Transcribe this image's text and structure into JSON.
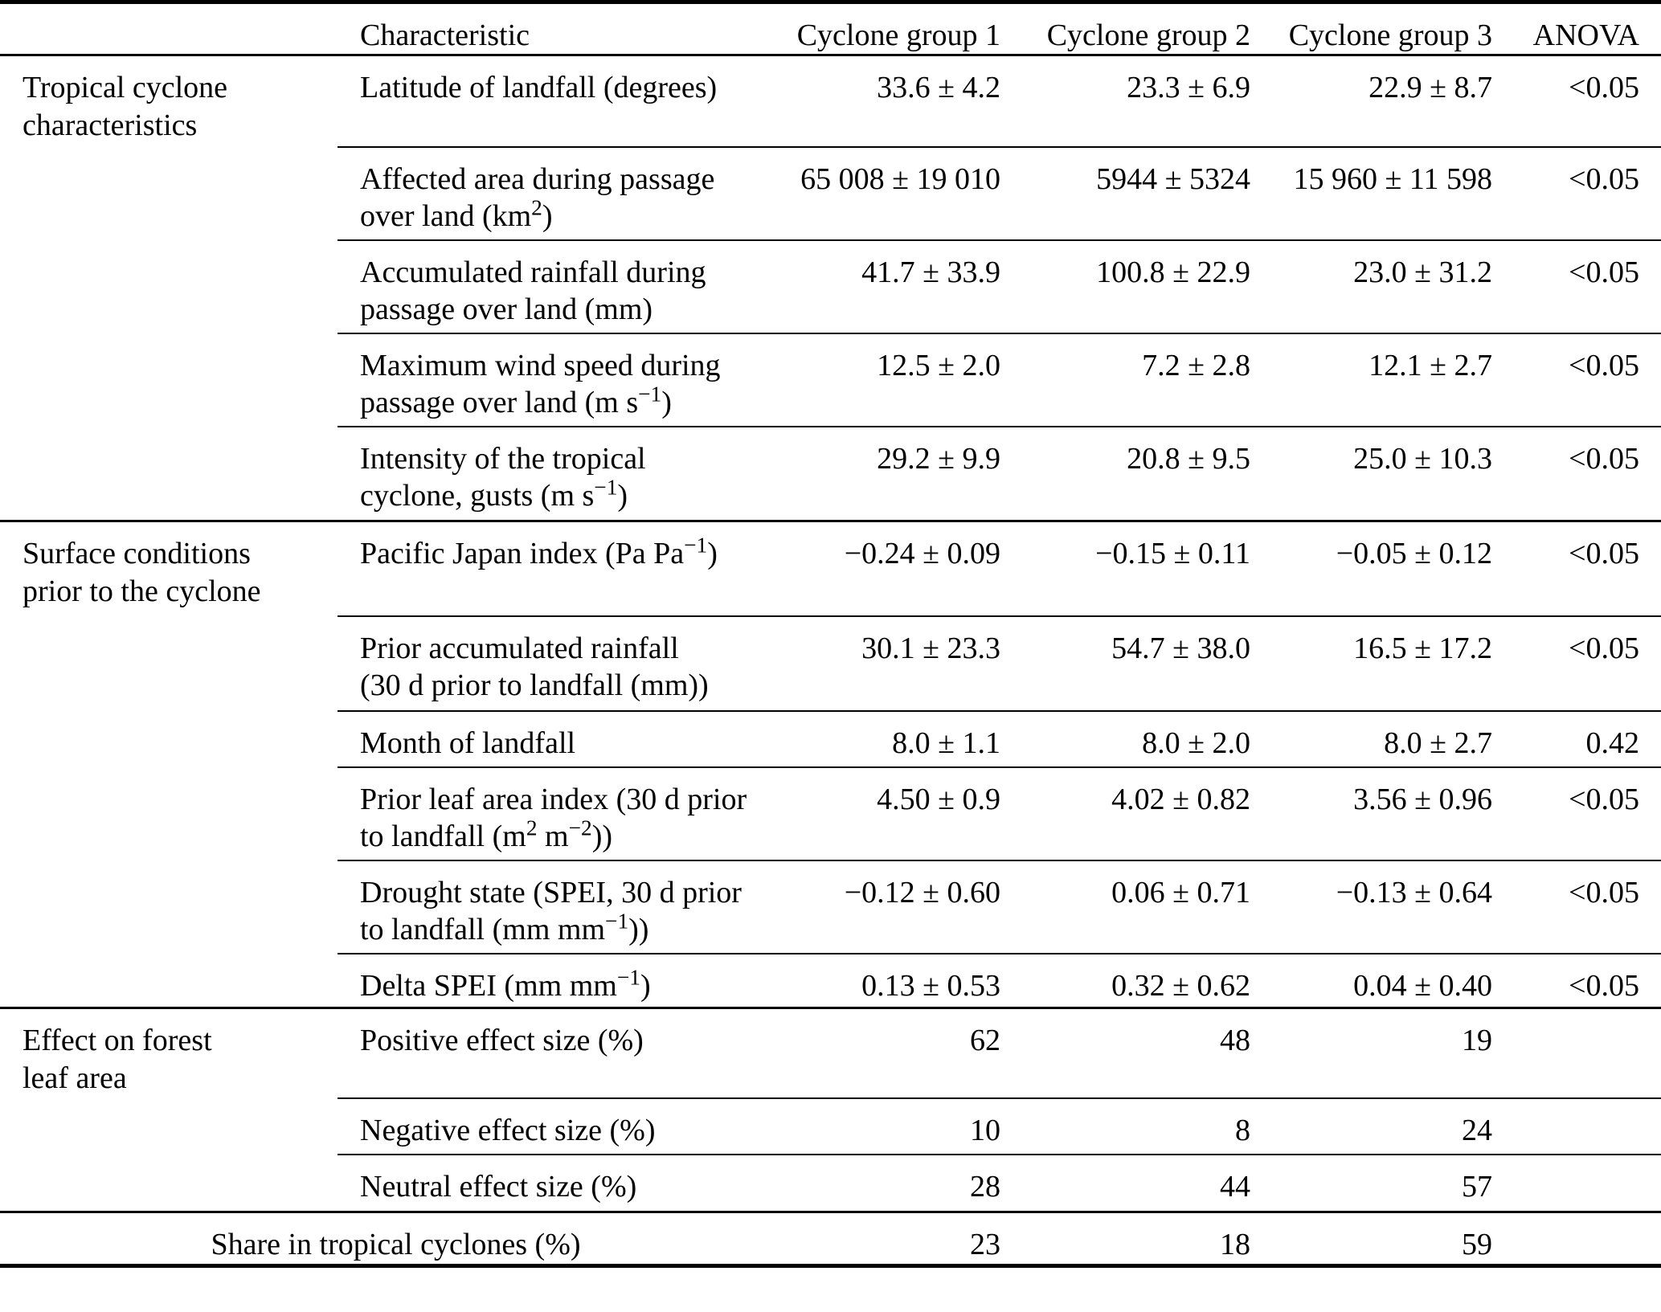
{
  "table": {
    "headers": {
      "characteristic": "Characteristic",
      "group1": "Cyclone group 1",
      "group2": "Cyclone group 2",
      "group3": "Cyclone group 3",
      "anova": "ANOVA"
    },
    "sections": [
      {
        "label_html": "Tropical cyclone<br>characteristics",
        "rows": [
          {
            "characteristic_html": "Latitude of landfall (degrees)",
            "group1": "33.6 ± 4.2",
            "group2": "23.3 ± 6.9",
            "group3": "22.9 ± 8.7",
            "anova": "<0.05"
          },
          {
            "characteristic_html": "Affected area during passage<br>over land (km<sup>2</sup>)",
            "group1": "65 008 ± 19 010",
            "group2": "5944 ± 5324",
            "group3": "15 960 ± 11 598",
            "anova": "<0.05"
          },
          {
            "characteristic_html": "Accumulated rainfall during<br>passage over land (mm)",
            "group1": "41.7 ± 33.9",
            "group2": "100.8 ± 22.9",
            "group3": "23.0 ± 31.2",
            "anova": "<0.05"
          },
          {
            "characteristic_html": "Maximum wind speed during<br>passage over land (m s<sup>−1</sup>)",
            "group1": "12.5 ± 2.0",
            "group2": "7.2 ± 2.8",
            "group3": "12.1 ± 2.7",
            "anova": "<0.05"
          },
          {
            "characteristic_html": "Intensity of the tropical<br>cyclone, gusts (m s<sup>−1</sup>)",
            "group1": "29.2 ± 9.9",
            "group2": "20.8 ± 9.5",
            "group3": "25.0 ± 10.3",
            "anova": "<0.05"
          }
        ]
      },
      {
        "label_html": "Surface conditions<br>prior to the cyclone",
        "rows": [
          {
            "characteristic_html": "Pacific Japan index (Pa Pa<sup>−1</sup>)",
            "group1": "−0.24 ± 0.09",
            "group2": "−0.15 ± 0.11",
            "group3": "−0.05 ± 0.12",
            "anova": "<0.05"
          },
          {
            "characteristic_html": "Prior accumulated rainfall<br>(30 d prior to landfall (mm))",
            "group1": "30.1 ± 23.3",
            "group2": "54.7 ± 38.0",
            "group3": "16.5 ± 17.2",
            "anova": "<0.05"
          },
          {
            "characteristic_html": "Month of landfall",
            "group1": "8.0 ± 1.1",
            "group2": "8.0 ± 2.0",
            "group3": "8.0 ± 2.7",
            "anova": "0.42"
          },
          {
            "characteristic_html": "Prior leaf area index (30 d prior<br>to landfall (m<sup>2</sup> m<sup>−2</sup>))",
            "group1": "4.50 ± 0.9",
            "group2": "4.02 ± 0.82",
            "group3": "3.56 ± 0.96",
            "anova": "<0.05"
          },
          {
            "characteristic_html": "Drought state (SPEI, 30 d prior<br>to landfall (mm mm<sup>−1</sup>))",
            "group1": "−0.12 ± 0.60",
            "group2": "0.06 ± 0.71",
            "group3": "−0.13 ± 0.64",
            "anova": "<0.05"
          },
          {
            "characteristic_html": "Delta SPEI (mm mm<sup>−1</sup>)",
            "group1": "0.13 ± 0.53",
            "group2": "0.32 ± 0.62",
            "group3": "0.04 ± 0.40",
            "anova": "<0.05"
          }
        ]
      },
      {
        "label_html": "Effect on forest<br>leaf area",
        "rows": [
          {
            "characteristic_html": "Positive effect size (%)",
            "group1": "62",
            "group2": "48",
            "group3": "19",
            "anova": ""
          },
          {
            "characteristic_html": "Negative effect size (%)",
            "group1": "10",
            "group2": "8",
            "group3": "24",
            "anova": ""
          },
          {
            "characteristic_html": "Neutral effect size (%)",
            "group1": "28",
            "group2": "44",
            "group3": "57",
            "anova": ""
          }
        ]
      }
    ],
    "footer_row": {
      "label": "Share in tropical cyclones (%)",
      "group1": "23",
      "group2": "18",
      "group3": "59",
      "anova": ""
    }
  }
}
